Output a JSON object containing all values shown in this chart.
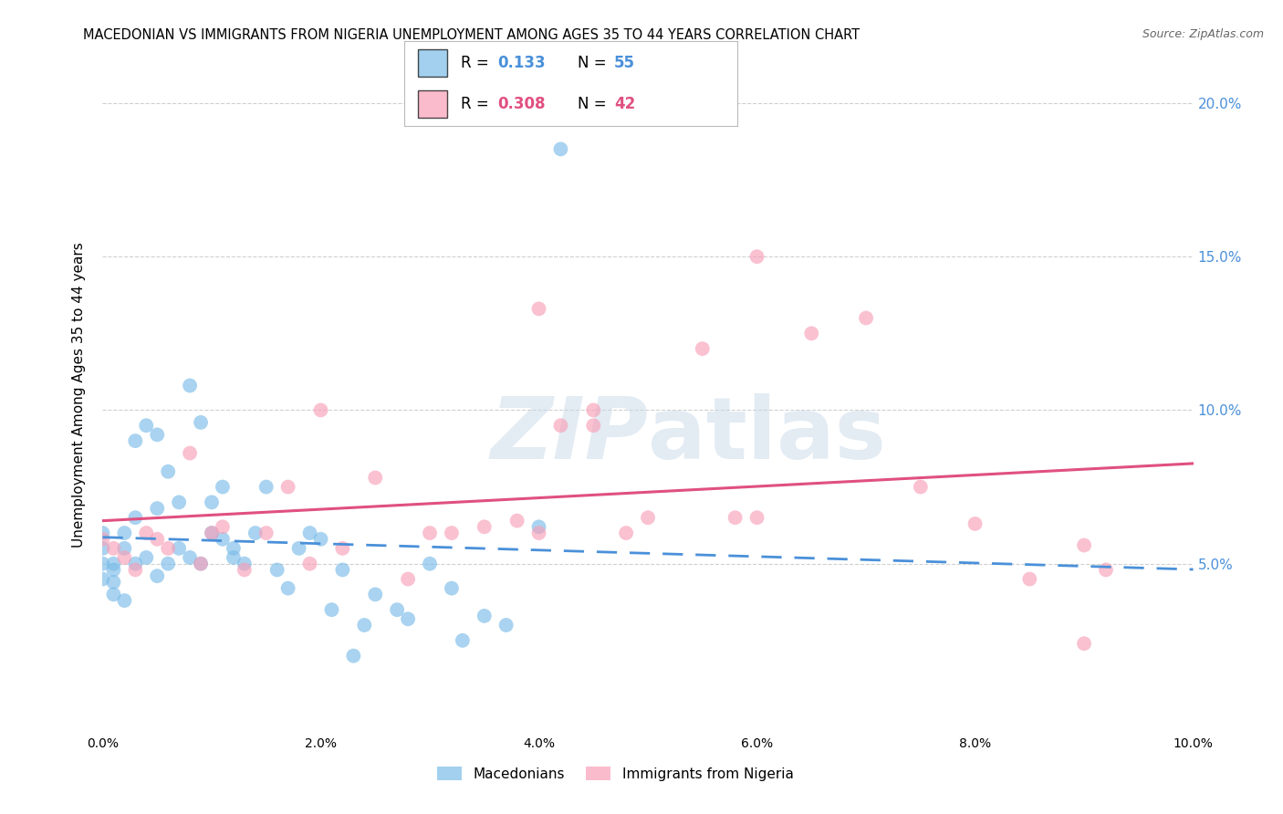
{
  "title": "MACEDONIAN VS IMMIGRANTS FROM NIGERIA UNEMPLOYMENT AMONG AGES 35 TO 44 YEARS CORRELATION CHART",
  "source": "Source: ZipAtlas.com",
  "ylabel": "Unemployment Among Ages 35 to 44 years",
  "xlim": [
    0.0,
    0.1
  ],
  "ylim": [
    -0.005,
    0.215
  ],
  "legend1_R": "0.133",
  "legend1_N": "55",
  "legend2_R": "0.308",
  "legend2_N": "42",
  "macedonian_color": "#7bbce8",
  "nigerian_color": "#f8a0b8",
  "trendline_mac_color": "#4a90d9",
  "trendline_nig_color": "#e05080",
  "background_color": "#ffffff",
  "grid_color": "#d0d0d0",
  "right_axis_color": "#4a90d9",
  "mac_x": [
    0.0,
    0.0,
    0.0,
    0.0,
    0.001,
    0.001,
    0.001,
    0.001,
    0.002,
    0.002,
    0.002,
    0.003,
    0.003,
    0.003,
    0.004,
    0.004,
    0.005,
    0.005,
    0.005,
    0.006,
    0.006,
    0.007,
    0.007,
    0.008,
    0.008,
    0.009,
    0.009,
    0.01,
    0.01,
    0.011,
    0.011,
    0.012,
    0.012,
    0.013,
    0.014,
    0.015,
    0.016,
    0.017,
    0.018,
    0.019,
    0.02,
    0.021,
    0.022,
    0.023,
    0.024,
    0.025,
    0.027,
    0.028,
    0.03,
    0.032,
    0.033,
    0.035,
    0.037,
    0.04,
    0.042
  ],
  "mac_y": [
    0.055,
    0.06,
    0.05,
    0.045,
    0.048,
    0.044,
    0.05,
    0.04,
    0.06,
    0.055,
    0.038,
    0.05,
    0.065,
    0.09,
    0.052,
    0.095,
    0.068,
    0.046,
    0.092,
    0.05,
    0.08,
    0.055,
    0.07,
    0.052,
    0.108,
    0.05,
    0.096,
    0.06,
    0.07,
    0.058,
    0.075,
    0.055,
    0.052,
    0.05,
    0.06,
    0.075,
    0.048,
    0.042,
    0.055,
    0.06,
    0.058,
    0.035,
    0.048,
    0.02,
    0.03,
    0.04,
    0.035,
    0.032,
    0.05,
    0.042,
    0.025,
    0.033,
    0.03,
    0.062,
    0.185
  ],
  "nig_x": [
    0.0,
    0.001,
    0.002,
    0.003,
    0.004,
    0.005,
    0.006,
    0.008,
    0.009,
    0.01,
    0.011,
    0.013,
    0.015,
    0.017,
    0.019,
    0.02,
    0.022,
    0.025,
    0.028,
    0.03,
    0.032,
    0.035,
    0.038,
    0.04,
    0.042,
    0.045,
    0.048,
    0.05,
    0.055,
    0.058,
    0.06,
    0.065,
    0.07,
    0.075,
    0.08,
    0.085,
    0.09,
    0.092,
    0.04,
    0.045,
    0.06,
    0.09
  ],
  "nig_y": [
    0.058,
    0.055,
    0.052,
    0.048,
    0.06,
    0.058,
    0.055,
    0.086,
    0.05,
    0.06,
    0.062,
    0.048,
    0.06,
    0.075,
    0.05,
    0.1,
    0.055,
    0.078,
    0.045,
    0.06,
    0.06,
    0.062,
    0.064,
    0.06,
    0.095,
    0.1,
    0.06,
    0.065,
    0.12,
    0.065,
    0.065,
    0.125,
    0.13,
    0.075,
    0.063,
    0.045,
    0.056,
    0.048,
    0.133,
    0.095,
    0.15,
    0.024
  ]
}
